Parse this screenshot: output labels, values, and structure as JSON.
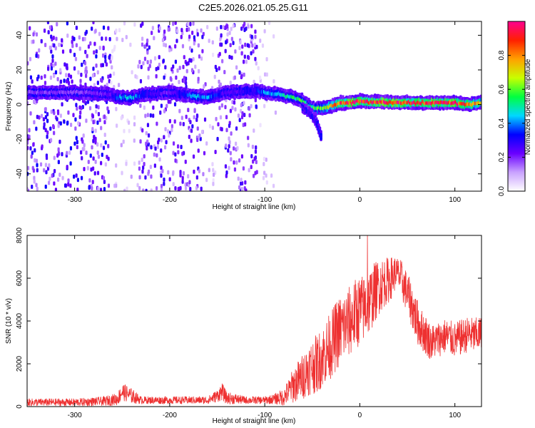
{
  "title": "C2E5.2026.021.05.25.G11",
  "chart_data": [
    {
      "type": "heatmap",
      "xlabel": "Height of straight line (km)",
      "ylabel": "Frequency (Hz)",
      "xlim": [
        -350,
        128
      ],
      "ylim": [
        -50,
        48
      ],
      "x_ticks": [
        -300,
        -200,
        -100,
        0,
        100
      ],
      "x_tick_labels": [
        "-300",
        "-200",
        "-100",
        "0",
        "100"
      ],
      "y_ticks": [
        -40,
        -20,
        0,
        20,
        40
      ],
      "y_tick_labels": [
        "-40",
        "-20",
        "0",
        "20",
        "40"
      ],
      "colorbar": {
        "label": "Normalized spectral amplitude",
        "range": [
          0,
          1
        ],
        "ticks": [
          0.0,
          0.2,
          0.4,
          0.6,
          0.8
        ],
        "tick_labels": [
          "0.0",
          "0.2",
          "0.4",
          "0.6",
          "0.8"
        ],
        "colors": [
          "#ffffff",
          "#c9a2ff",
          "#6a00ff",
          "#0000ff",
          "#00d8ff",
          "#00ff40",
          "#c8ff00",
          "#ffa000",
          "#ff2000",
          "#ff0090"
        ]
      },
      "noise_regions": [
        {
          "x": [
            -350,
            -262
          ],
          "y": [
            -50,
            48
          ],
          "level": 0.22
        },
        {
          "x": [
            -262,
            -232
          ],
          "y": [
            -50,
            48
          ],
          "level": 0.08
        },
        {
          "x": [
            -232,
            -162
          ],
          "y": [
            -50,
            48
          ],
          "level": 0.2
        },
        {
          "x": [
            -162,
            -152
          ],
          "y": [
            -50,
            48
          ],
          "level": 0.08
        },
        {
          "x": [
            -152,
            -108
          ],
          "y": [
            -50,
            48
          ],
          "level": 0.2
        },
        {
          "x": [
            -108,
            -88
          ],
          "y": [
            -50,
            48
          ],
          "level": 0.07
        }
      ],
      "signal_track": [
        {
          "x": -350,
          "f": 7,
          "a": 0.18
        },
        {
          "x": -300,
          "f": 7,
          "a": 0.18
        },
        {
          "x": -262,
          "f": 6,
          "a": 0.22
        },
        {
          "x": -255,
          "f": 4,
          "a": 0.4
        },
        {
          "x": -240,
          "f": 4,
          "a": 0.45
        },
        {
          "x": -225,
          "f": 6,
          "a": 0.3
        },
        {
          "x": -200,
          "f": 7,
          "a": 0.2
        },
        {
          "x": -175,
          "f": 5,
          "a": 0.4
        },
        {
          "x": -160,
          "f": 4,
          "a": 0.42
        },
        {
          "x": -140,
          "f": 7,
          "a": 0.22
        },
        {
          "x": -110,
          "f": 8,
          "a": 0.3
        },
        {
          "x": -100,
          "f": 7,
          "a": 0.4
        },
        {
          "x": -85,
          "f": 6,
          "a": 0.45
        },
        {
          "x": -70,
          "f": 4,
          "a": 0.5
        },
        {
          "x": -60,
          "f": 2,
          "a": 0.55
        },
        {
          "x": -50,
          "f": -2,
          "a": 0.55
        },
        {
          "x": -40,
          "f": -2,
          "a": 0.6
        },
        {
          "x": -30,
          "f": -1,
          "a": 0.7
        },
        {
          "x": -20,
          "f": 1,
          "a": 0.85
        },
        {
          "x": -10,
          "f": 1,
          "a": 0.9
        },
        {
          "x": 0,
          "f": 2,
          "a": 0.9
        },
        {
          "x": 20,
          "f": 1.5,
          "a": 0.92
        },
        {
          "x": 50,
          "f": 1,
          "a": 0.9
        },
        {
          "x": 80,
          "f": 1,
          "a": 0.92
        },
        {
          "x": 100,
          "f": 1,
          "a": 0.9
        },
        {
          "x": 115,
          "f": 0,
          "a": 0.8
        },
        {
          "x": 128,
          "f": 1,
          "a": 0.75
        }
      ],
      "branch_track": [
        {
          "x": -60,
          "f": -2,
          "a": 0.25
        },
        {
          "x": -50,
          "f": -6,
          "a": 0.3
        },
        {
          "x": -44,
          "f": -12,
          "a": 0.3
        },
        {
          "x": -40,
          "f": -20,
          "a": 0.35
        }
      ]
    },
    {
      "type": "line",
      "xlabel": "Height of straight line (km)",
      "ylabel": "SNR (10 * v/v)",
      "xlim": [
        -350,
        128
      ],
      "ylim": [
        0,
        8000
      ],
      "x_ticks": [
        -300,
        -200,
        -100,
        0,
        100
      ],
      "x_tick_labels": [
        "-300",
        "-200",
        "-100",
        "0",
        "100"
      ],
      "y_ticks": [
        0,
        2000,
        4000,
        6000,
        8000
      ],
      "y_tick_labels": [
        "0",
        "2000",
        "4000",
        "6000",
        "8000"
      ],
      "line_color": "#ee3030",
      "series_envelope": {
        "x": [
          -350,
          -300,
          -270,
          -255,
          -250,
          -240,
          -230,
          -200,
          -160,
          -150,
          -145,
          -140,
          -120,
          -100,
          -90,
          -80,
          -75,
          -70,
          -65,
          -60,
          -55,
          -50,
          -45,
          -40,
          -35,
          -30,
          -25,
          -20,
          -15,
          -10,
          -5,
          0,
          5,
          10,
          15,
          20,
          25,
          30,
          35,
          38,
          42,
          45,
          50,
          55,
          60,
          65,
          70,
          75,
          80,
          85,
          90,
          95,
          100,
          105,
          110,
          115,
          120,
          128
        ],
        "mean": [
          200,
          200,
          250,
          350,
          700,
          500,
          300,
          300,
          300,
          500,
          700,
          400,
          300,
          300,
          350,
          450,
          700,
          1000,
          1200,
          1400,
          1700,
          1900,
          2000,
          2300,
          2600,
          2900,
          3300,
          3600,
          3800,
          4000,
          4300,
          4500,
          4600,
          4900,
          5300,
          5600,
          5800,
          5900,
          6100,
          6300,
          6100,
          5800,
          5300,
          4700,
          4000,
          3600,
          3300,
          3000,
          3100,
          3200,
          3300,
          3200,
          3100,
          3200,
          3300,
          3400,
          3300,
          3400
        ],
        "spread": [
          150,
          150,
          180,
          250,
          350,
          300,
          150,
          150,
          150,
          250,
          350,
          250,
          150,
          150,
          200,
          350,
          500,
          700,
          800,
          900,
          1000,
          1100,
          1150,
          1200,
          1300,
          1300,
          1400,
          1400,
          1400,
          1400,
          1400,
          1400,
          1300,
          1300,
          1200,
          1100,
          1000,
          900,
          800,
          600,
          700,
          800,
          800,
          900,
          900,
          800,
          800,
          700,
          700,
          700,
          700,
          700,
          700,
          700,
          700,
          700,
          700,
          700
        ]
      },
      "peak": {
        "x": 8,
        "y": 8000
      }
    }
  ]
}
